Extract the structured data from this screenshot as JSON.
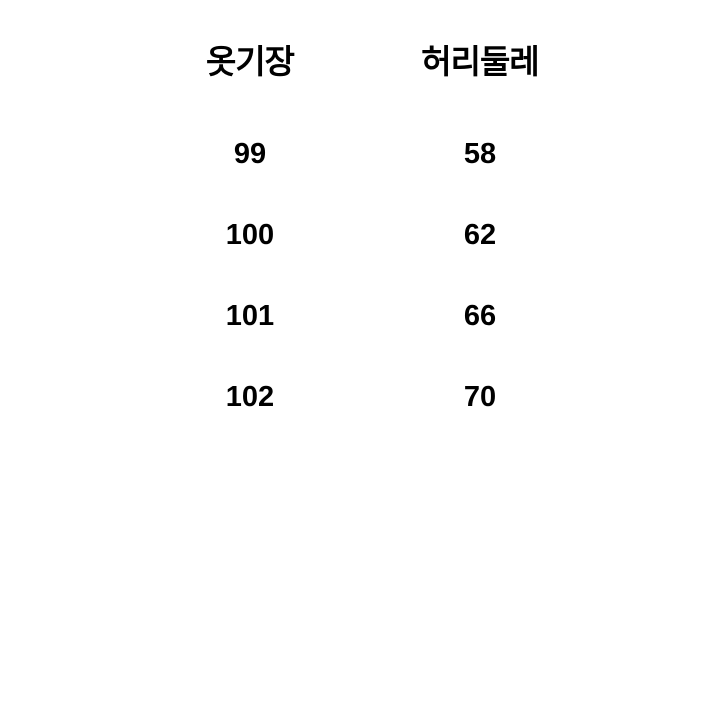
{
  "table": {
    "type": "table",
    "columns": [
      "옷기장",
      "허리둘레"
    ],
    "rows": [
      [
        "99",
        "58"
      ],
      [
        "100",
        "62"
      ],
      [
        "101",
        "66"
      ],
      [
        "102",
        "70"
      ]
    ],
    "header_fontsize": 33,
    "header_fontweight": 700,
    "cell_fontsize": 29,
    "cell_fontweight": 600,
    "text_color": "#000000",
    "background_color": "#ffffff",
    "column_alignment": [
      "center",
      "center"
    ]
  }
}
